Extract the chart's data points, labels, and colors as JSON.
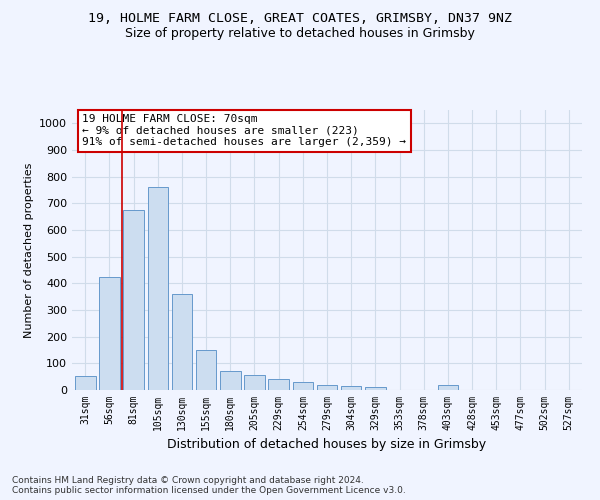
{
  "title_line1": "19, HOLME FARM CLOSE, GREAT COATES, GRIMSBY, DN37 9NZ",
  "title_line2": "Size of property relative to detached houses in Grimsby",
  "xlabel": "Distribution of detached houses by size in Grimsby",
  "ylabel": "Number of detached properties",
  "categories": [
    "31sqm",
    "56sqm",
    "81sqm",
    "105sqm",
    "130sqm",
    "155sqm",
    "180sqm",
    "205sqm",
    "229sqm",
    "254sqm",
    "279sqm",
    "304sqm",
    "329sqm",
    "353sqm",
    "378sqm",
    "403sqm",
    "428sqm",
    "453sqm",
    "477sqm",
    "502sqm",
    "527sqm"
  ],
  "values": [
    52,
    425,
    675,
    760,
    360,
    150,
    70,
    55,
    40,
    30,
    20,
    15,
    10,
    0,
    0,
    20,
    0,
    0,
    0,
    0,
    0
  ],
  "bar_color": "#ccddf0",
  "bar_edge_color": "#6699cc",
  "grid_color": "#d0dcea",
  "annotation_text": "19 HOLME FARM CLOSE: 70sqm\n← 9% of detached houses are smaller (223)\n91% of semi-detached houses are larger (2,359) →",
  "annotation_box_color": "#ffffff",
  "annotation_box_edge_color": "#cc0000",
  "vline_color": "#cc0000",
  "footer_text": "Contains HM Land Registry data © Crown copyright and database right 2024.\nContains public sector information licensed under the Open Government Licence v3.0.",
  "ylim": [
    0,
    1050
  ],
  "yticks": [
    0,
    100,
    200,
    300,
    400,
    500,
    600,
    700,
    800,
    900,
    1000
  ],
  "bg_color": "#f0f4ff"
}
